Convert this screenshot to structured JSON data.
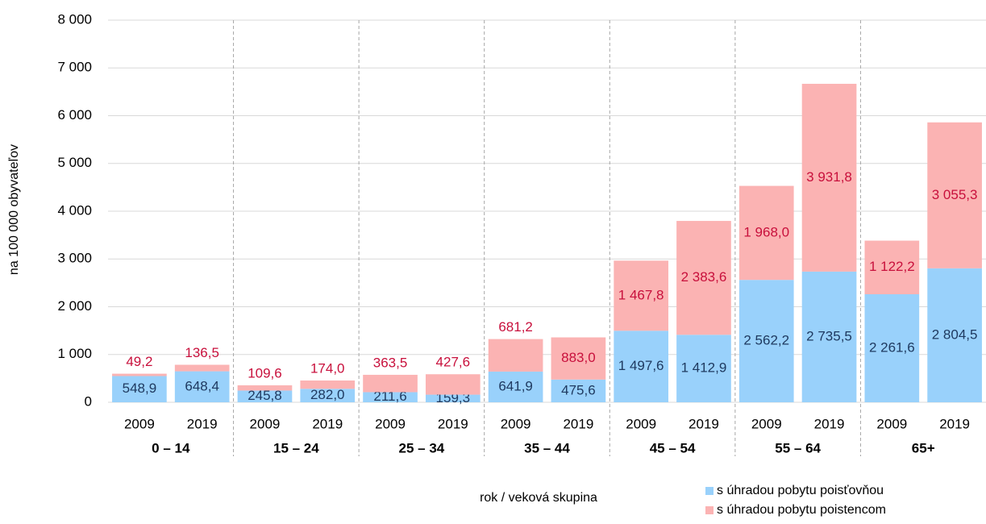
{
  "chart_data": {
    "type": "stacked-bar",
    "y_label": "na 100 000 obyvateľov",
    "x_label": "rok / veková skupina",
    "categories": [
      "2009",
      "2019",
      "2009",
      "2019",
      "2009",
      "2019",
      "2009",
      "2019",
      "2009",
      "2019",
      "2009",
      "2019",
      "2009",
      "2019"
    ],
    "groups": [
      "0 – 14",
      "15 – 24",
      "25 – 34",
      "35 – 44",
      "45 – 54",
      "55 – 64",
      "65+"
    ],
    "series": [
      {
        "name": "s úhradou pobytu poisťovňou",
        "color": "#99d1fb",
        "label_color": "#1f3a60",
        "values": [
          548.9,
          648.4,
          245.8,
          282.0,
          211.6,
          159.3,
          641.9,
          475.6,
          1497.6,
          1412.9,
          2562.2,
          2735.5,
          2261.6,
          2804.5
        ],
        "value_labels": [
          "548,9",
          "648,4",
          "245,8",
          "282,0",
          "211,6",
          "159,3",
          "641,9",
          "475,6",
          "1 497,6",
          "1 412,9",
          "2 562,2",
          "2 735,5",
          "2 261,6",
          "2 804,5"
        ]
      },
      {
        "name": "s úhradou pobytu poistencom",
        "color": "#fbb3b3",
        "label_color": "#c8103c",
        "values": [
          49.2,
          136.5,
          109.6,
          174.0,
          363.5,
          427.6,
          681.2,
          883.0,
          1467.8,
          2383.6,
          1968.0,
          3931.8,
          1122.2,
          3055.3
        ],
        "value_labels": [
          "49,2",
          "136,5",
          "109,6",
          "174,0",
          "363,5",
          "427,6",
          "681,2",
          "883,0",
          "1 467,8",
          "2 383,6",
          "1 968,0",
          "3 931,8",
          "1 122,2",
          "3 055,3"
        ]
      }
    ],
    "ylim": [
      0,
      8000
    ],
    "yticks": [
      0,
      {
        "value": 1000,
        "label": "1 000"
      },
      {
        "value": 2000,
        "label": "2 000"
      },
      {
        "value": 3000,
        "label": "3 000"
      },
      {
        "value": 4000,
        "label": "4 000"
      },
      {
        "value": 5000,
        "label": "5 000"
      },
      {
        "value": 6000,
        "label": "6 000"
      },
      {
        "value": 7000,
        "label": "7 000"
      },
      {
        "value": 8000,
        "label": "8 000"
      }
    ],
    "grid": true
  }
}
